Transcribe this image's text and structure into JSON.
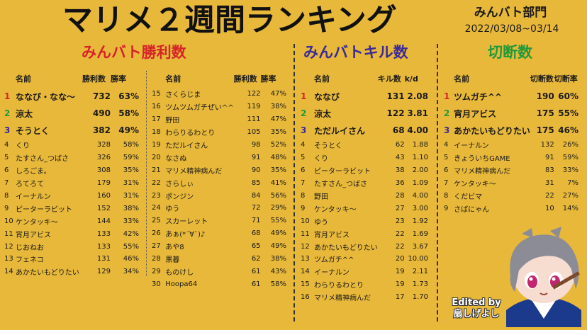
{
  "title": "マリメ２週間ランキング",
  "dept": "みんバト部門",
  "date_range": "2022/03/08~03/14",
  "sections": {
    "wins": {
      "title": "みんバト勝利数"
    },
    "kills": {
      "title": "みんバトキル数"
    },
    "cuts": {
      "title": "切断数"
    }
  },
  "wins_left": {
    "headers": [
      "名前",
      "勝利数",
      "勝率"
    ],
    "rows": [
      [
        "1",
        "ななび・なな～",
        "732",
        "63%"
      ],
      [
        "2",
        "涼太",
        "490",
        "58%"
      ],
      [
        "3",
        "そうとく",
        "382",
        "49%"
      ],
      [
        "4",
        "くり",
        "328",
        "58%"
      ],
      [
        "5",
        "たすさん_つばさ",
        "326",
        "59%"
      ],
      [
        "6",
        "しろごま。",
        "308",
        "35%"
      ],
      [
        "7",
        "ろてろて",
        "179",
        "31%"
      ],
      [
        "8",
        "イーナルン",
        "160",
        "31%"
      ],
      [
        "9",
        "ピーターラビット",
        "152",
        "38%"
      ],
      [
        "10",
        "ケンタッキ～",
        "144",
        "33%"
      ],
      [
        "11",
        "宵月アビス",
        "133",
        "42%"
      ],
      [
        "12",
        "じおねお",
        "133",
        "55%"
      ],
      [
        "13",
        "フェネコ",
        "131",
        "46%"
      ],
      [
        "14",
        "あかたいもどりたい",
        "129",
        "34%"
      ]
    ]
  },
  "wins_right": {
    "headers": [
      "名前",
      "勝利数",
      "勝率"
    ],
    "rows": [
      [
        "15",
        "さくらじま",
        "122",
        "47%"
      ],
      [
        "16",
        "ツムツムガチぜい^^",
        "119",
        "38%"
      ],
      [
        "17",
        "野田",
        "111",
        "47%"
      ],
      [
        "18",
        "わらりるわとり",
        "105",
        "35%"
      ],
      [
        "19",
        "ただルイさん",
        "98",
        "52%"
      ],
      [
        "20",
        "なさぬ",
        "91",
        "48%"
      ],
      [
        "21",
        "マリメ精神病んだ",
        "90",
        "35%"
      ],
      [
        "22",
        "さらしぃ",
        "85",
        "41%"
      ],
      [
        "23",
        "ポンジン",
        "84",
        "56%"
      ],
      [
        "24",
        "ゆう",
        "72",
        "29%"
      ],
      [
        "25",
        "スカーレット",
        "71",
        "55%"
      ],
      [
        "26",
        "あぁ(*´∀`)♪",
        "68",
        "49%"
      ],
      [
        "27",
        "あや8",
        "65",
        "49%"
      ],
      [
        "28",
        "黒暮",
        "62",
        "38%"
      ],
      [
        "29",
        "ものけし",
        "61",
        "43%"
      ],
      [
        "30",
        "Hoopa64",
        "61",
        "58%"
      ]
    ]
  },
  "kills": {
    "headers": [
      "名前",
      "キル数",
      "k/d"
    ],
    "rows": [
      [
        "1",
        "ななび",
        "131",
        "2.08"
      ],
      [
        "2",
        "涼太",
        "122",
        "3.81"
      ],
      [
        "3",
        "ただルイさん",
        "68",
        "4.00"
      ],
      [
        "4",
        "そうとく",
        "62",
        "1.88"
      ],
      [
        "5",
        "くり",
        "43",
        "1.10"
      ],
      [
        "6",
        "ピーターラビット",
        "38",
        "2.00"
      ],
      [
        "7",
        "たすさん_つばさ",
        "36",
        "1.09"
      ],
      [
        "8",
        "野田",
        "28",
        "4.00"
      ],
      [
        "9",
        "ケンタッキ～",
        "27",
        "3.00"
      ],
      [
        "10",
        "ゆう",
        "23",
        "1.92"
      ],
      [
        "11",
        "宵月アビス",
        "22",
        "1.69"
      ],
      [
        "12",
        "あかたいもどりたい",
        "22",
        "3.67"
      ],
      [
        "13",
        "ツムガチ^^",
        "20",
        "10.00"
      ],
      [
        "14",
        "イーナルン",
        "19",
        "2.11"
      ],
      [
        "15",
        "わらりるわとり",
        "19",
        "1.73"
      ],
      [
        "16",
        "マリメ精神病んだ",
        "17",
        "1.70"
      ]
    ]
  },
  "cuts": {
    "headers": [
      "名前",
      "切断数",
      "切断率"
    ],
    "rows": [
      [
        "1",
        "ツムガチ^^",
        "190",
        "60%"
      ],
      [
        "2",
        "宵月アビス",
        "175",
        "55%"
      ],
      [
        "3",
        "あかたいもどりたい",
        "175",
        "46%"
      ],
      [
        "4",
        "イーナルン",
        "132",
        "26%"
      ],
      [
        "5",
        "きょういちGAME",
        "91",
        "59%"
      ],
      [
        "6",
        "マリメ精神病んだ",
        "83",
        "33%"
      ],
      [
        "7",
        "ケンタッキ～",
        "31",
        "7%"
      ],
      [
        "8",
        "くだビマ",
        "22",
        "27%"
      ],
      [
        "9",
        "さばにゃん",
        "10",
        "14%"
      ]
    ]
  },
  "credit": {
    "line1": "Edited by",
    "line2": "扇しげよし"
  },
  "colors": {
    "background": "#e8b83a",
    "red": "#d6232a",
    "blue": "#3a2a9a",
    "green": "#1f9a3a"
  },
  "avatar_icon": "chibi-character-icon"
}
